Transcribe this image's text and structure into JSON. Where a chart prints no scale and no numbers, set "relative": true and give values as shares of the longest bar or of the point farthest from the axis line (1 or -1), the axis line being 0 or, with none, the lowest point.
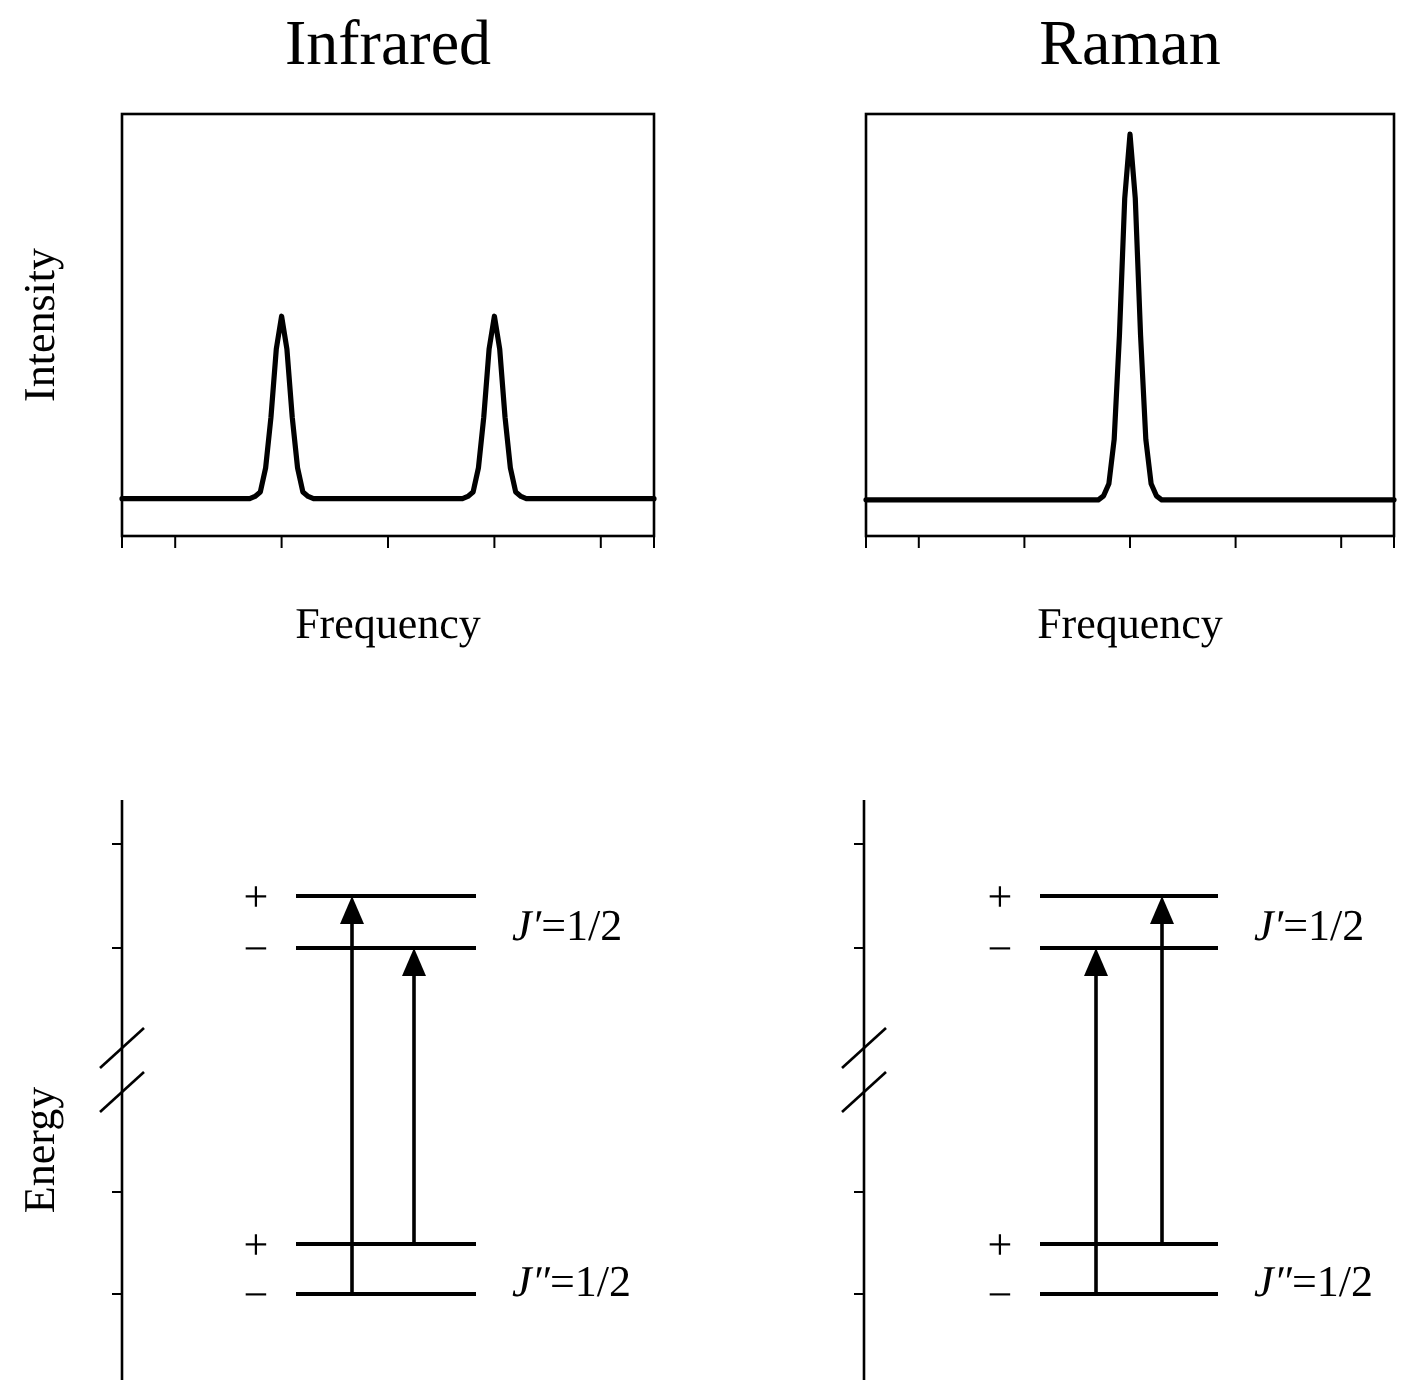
{
  "chart_data": [
    {
      "type": "line",
      "title": "Infrared",
      "xlabel": "Frequency",
      "ylabel": "Intensity",
      "relative": true,
      "color": "#000000",
      "categories": [
        null,
        null,
        null,
        null,
        null,
        null,
        null,
        null,
        null,
        null,
        null,
        null,
        null,
        null,
        null,
        null,
        null,
        null,
        null,
        null,
        null,
        null,
        null,
        null,
        null,
        null,
        null,
        null,
        null,
        null,
        null,
        null,
        null,
        null,
        null,
        null,
        null,
        null,
        null,
        null,
        null,
        null,
        null,
        null,
        null,
        null,
        null,
        null,
        null,
        null,
        null,
        null,
        null,
        null,
        null,
        null,
        null,
        null,
        null,
        null,
        null,
        null,
        null,
        null,
        null,
        null,
        null,
        null,
        null,
        null,
        null,
        null,
        null,
        null,
        null,
        null,
        null,
        null,
        null,
        null,
        null,
        null,
        null,
        null,
        null,
        null,
        null,
        null,
        null,
        null,
        null,
        null,
        null,
        null,
        null,
        null,
        null,
        null,
        null,
        null,
        null
      ],
      "values": [
        0.17,
        0.17,
        0.17,
        0.17,
        0.17,
        0.17,
        0.17,
        0.17,
        0.17,
        0.17,
        0.17,
        0.17,
        0.17,
        0.17,
        0.17,
        0.17,
        0.17,
        0.17,
        0.17,
        0.17,
        0.17,
        0.17,
        0.17,
        0.17,
        0.17,
        0.18,
        0.2,
        0.31,
        0.54,
        0.85,
        1,
        0.85,
        0.54,
        0.31,
        0.2,
        0.18,
        0.17,
        0.17,
        0.17,
        0.17,
        0.17,
        0.17,
        0.17,
        0.17,
        0.17,
        0.17,
        0.17,
        0.17,
        0.17,
        0.17,
        0.17,
        0.17,
        0.17,
        0.17,
        0.17,
        0.17,
        0.17,
        0.17,
        0.17,
        0.17,
        0.17,
        0.17,
        0.17,
        0.17,
        0.17,
        0.18,
        0.2,
        0.31,
        0.54,
        0.85,
        1,
        0.85,
        0.54,
        0.31,
        0.2,
        0.18,
        0.17,
        0.17,
        0.17,
        0.17,
        0.17,
        0.17,
        0.17,
        0.17,
        0.17,
        0.17,
        0.17,
        0.17,
        0.17,
        0.17,
        0.17,
        0.17,
        0.17,
        0.17,
        0.17,
        0.17,
        0.17,
        0.17,
        0.17,
        0.17,
        0.17
      ]
    },
    {
      "type": "line",
      "title": "Raman",
      "xlabel": "Frequency",
      "relative": true,
      "color": "#000000",
      "categories": [
        null,
        null,
        null,
        null,
        null,
        null,
        null,
        null,
        null,
        null,
        null,
        null,
        null,
        null,
        null,
        null,
        null,
        null,
        null,
        null,
        null,
        null,
        null,
        null,
        null,
        null,
        null,
        null,
        null,
        null,
        null,
        null,
        null,
        null,
        null,
        null,
        null,
        null,
        null,
        null,
        null,
        null,
        null,
        null,
        null,
        null,
        null,
        null,
        null,
        null,
        null,
        null,
        null,
        null,
        null,
        null,
        null,
        null,
        null,
        null,
        null,
        null,
        null,
        null,
        null,
        null,
        null,
        null,
        null,
        null,
        null,
        null,
        null,
        null,
        null,
        null,
        null,
        null,
        null,
        null,
        null,
        null,
        null,
        null,
        null,
        null,
        null,
        null,
        null,
        null,
        null,
        null,
        null,
        null,
        null,
        null,
        null,
        null,
        null,
        null,
        null
      ],
      "values": [
        0.09,
        0.09,
        0.09,
        0.09,
        0.09,
        0.09,
        0.09,
        0.09,
        0.09,
        0.09,
        0.09,
        0.09,
        0.09,
        0.09,
        0.09,
        0.09,
        0.09,
        0.09,
        0.09,
        0.09,
        0.09,
        0.09,
        0.09,
        0.09,
        0.09,
        0.09,
        0.09,
        0.09,
        0.09,
        0.09,
        0.09,
        0.09,
        0.09,
        0.09,
        0.09,
        0.09,
        0.09,
        0.09,
        0.09,
        0.09,
        0.09,
        0.09,
        0.09,
        0.09,
        0.09,
        0.1,
        0.13,
        0.24,
        0.5,
        0.84,
        1,
        0.84,
        0.5,
        0.24,
        0.13,
        0.1,
        0.09,
        0.09,
        0.09,
        0.09,
        0.09,
        0.09,
        0.09,
        0.09,
        0.09,
        0.09,
        0.09,
        0.09,
        0.09,
        0.09,
        0.09,
        0.09,
        0.09,
        0.09,
        0.09,
        0.09,
        0.09,
        0.09,
        0.09,
        0.09,
        0.09,
        0.09,
        0.09,
        0.09,
        0.09,
        0.09,
        0.09,
        0.09,
        0.09,
        0.09,
        0.09,
        0.09,
        0.09,
        0.09,
        0.09,
        0.09,
        0.09,
        0.09,
        0.09,
        0.09,
        0.09
      ]
    },
    {
      "type": "other",
      "ylabel": "Energy",
      "annotations": [
        "+",
        "−",
        "J′=1/2",
        "+",
        "−",
        "J″=1/2"
      ]
    },
    {
      "type": "other",
      "annotations": [
        "+",
        "−",
        "J′=1/2",
        "+",
        "−",
        "J″=1/2"
      ]
    }
  ]
}
